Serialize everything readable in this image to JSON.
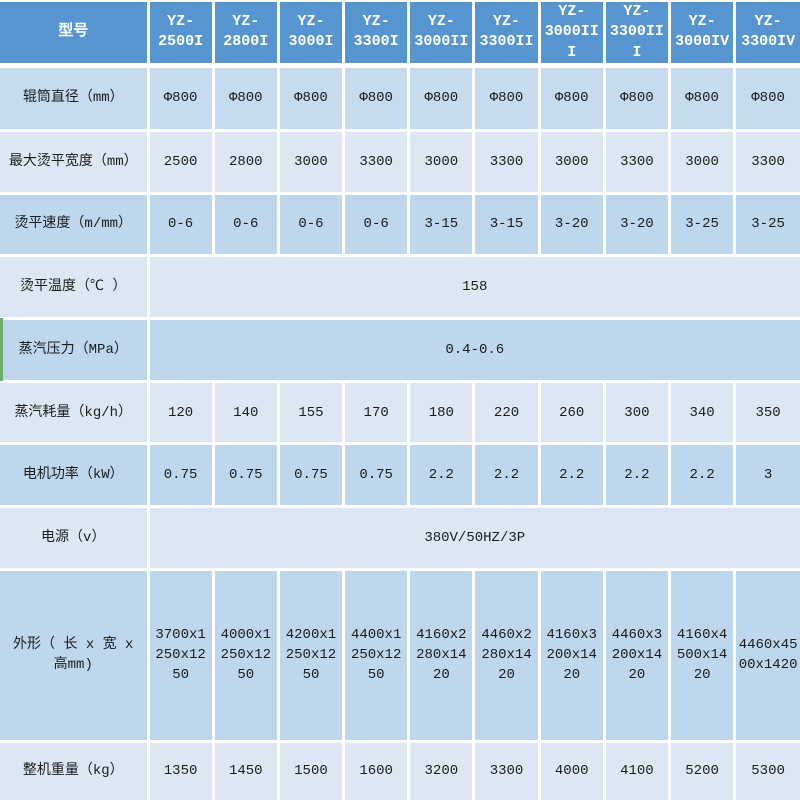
{
  "colors": {
    "header_bg": "#5795d0",
    "header_text": "#ffffff",
    "row_first": "#c6dbee",
    "row_medium": "#bed7ed",
    "row_light": "#dbe8f4",
    "grid_line": "#ffffff",
    "body_text": "#1c1c1c",
    "green_strip": "#6cae6c"
  },
  "chart_data": {
    "type": "table",
    "title": "",
    "header": [
      "型号",
      "YZ-2500I",
      "YZ-2800I",
      "YZ-3000I",
      "YZ-3300I",
      "YZ-3000II",
      "YZ-3300II",
      "YZ-3000III",
      "YZ-3300III",
      "YZ-3000IV",
      "YZ-3300IV"
    ],
    "rows": [
      {
        "label": "辊筒直径（mm）",
        "values": [
          "Φ800",
          "Φ800",
          "Φ800",
          "Φ800",
          "Φ800",
          "Φ800",
          "Φ800",
          "Φ800",
          "Φ800",
          "Φ800"
        ],
        "span": false,
        "bg": "#c6dbee",
        "green_strip": false
      },
      {
        "label": "最大烫平宽度（mm）",
        "values": [
          "2500",
          "2800",
          "3000",
          "3300",
          "3000",
          "3300",
          "3000",
          "3300",
          "3000",
          "3300"
        ],
        "span": false,
        "bg": "#dbe8f4",
        "green_strip": false
      },
      {
        "label": "烫平速度（m/mm）",
        "values": [
          "0-6",
          "0-6",
          "0-6",
          "0-6",
          "3-15",
          "3-15",
          "3-20",
          "3-20",
          "3-25",
          "3-25"
        ],
        "span": false,
        "bg": "#bed7ed",
        "green_strip": false
      },
      {
        "label": "烫平温度（℃ ）",
        "values": [
          "158"
        ],
        "span": true,
        "bg": "#dbe8f4",
        "green_strip": false
      },
      {
        "label": "蒸汽压力（MPa）",
        "values": [
          "0.4-0.6"
        ],
        "span": true,
        "bg": "#bed7ed",
        "green_strip": true
      },
      {
        "label": "蒸汽耗量（kg/h）",
        "values": [
          "120",
          "140",
          "155",
          "170",
          "180",
          "220",
          "260",
          "300",
          "340",
          "350"
        ],
        "span": false,
        "bg": "#dbe8f4",
        "green_strip": false
      },
      {
        "label": "电机功率（kW）",
        "values": [
          "0.75",
          "0.75",
          "0.75",
          "0.75",
          "2.2",
          "2.2",
          "2.2",
          "2.2",
          "2.2",
          "3"
        ],
        "span": false,
        "bg": "#bed7ed",
        "green_strip": false
      },
      {
        "label": "电源（v）",
        "values": [
          "380V/50HZ/3P"
        ],
        "span": true,
        "bg": "#dbe8f4",
        "green_strip": false
      },
      {
        "label": "外形（ 长 x 宽 x 高mm)",
        "values": [
          "3700x1250x1250",
          "4000x1250x1250",
          "4200x1250x1250",
          "4400x1250x1250",
          "4160x2280x1420",
          "4460x2280x1420",
          "4160x3200x1420",
          "4460x3200x1420",
          "4160x4500x1420",
          "4460x4500x1420"
        ],
        "span": false,
        "bg": "#bed7ed",
        "green_strip": false
      },
      {
        "label": "整机重量（kg）",
        "values": [
          "1350",
          "1450",
          "1500",
          "1600",
          "3200",
          "3300",
          "4000",
          "4100",
          "5200",
          "5300"
        ],
        "span": false,
        "bg": "#dbe8f4",
        "green_strip": false
      }
    ]
  }
}
